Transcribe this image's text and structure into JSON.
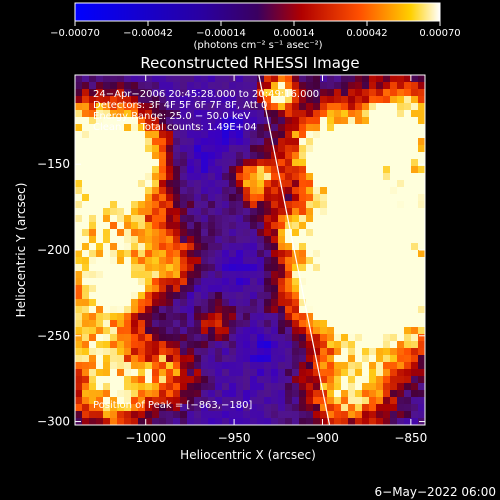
{
  "chart_data": {
    "type": "heatmap",
    "title": "Reconstructed RHESSI Image",
    "xlabel": "Heliocentric X (arcsec)",
    "ylabel": "Heliocentric Y (arcsec)",
    "xlim": [
      -1040,
      -842
    ],
    "ylim": [
      -302,
      -98
    ],
    "x_ticks": [
      -1000,
      -950,
      -900,
      -850
    ],
    "y_ticks": [
      -150,
      -200,
      -250,
      -300
    ],
    "x_tick_labels": [
      "−1000",
      "−950",
      "−900",
      "−850"
    ],
    "y_tick_labels": [
      "−150",
      "−200",
      "−250",
      "−300"
    ],
    "colorbar": {
      "range": [
        -0.0007,
        0.0007
      ],
      "ticks": [
        -0.0007,
        -0.00042,
        -0.00014,
        0.00014,
        0.00042,
        0.0007
      ],
      "tick_labels": [
        "−0.00070",
        "−0.00042",
        "−0.00014",
        "0.00014",
        "0.00042",
        "0.00070"
      ],
      "units": "(photons cm⁻² s⁻¹ asec⁻²)"
    },
    "annotations": [
      "24−Apr−2006 20:45:28.000 to 20:49:16.000",
      "Detectors: 3F 4F 5F 6F 7F 8F, Att 0",
      "Energy Range: 25.0 − 50.0 keV",
      "Clean      Total counts: 1.49E+04",
      "Position of Peak = [−863,−180]"
    ],
    "peak_position": [
      -863,
      -180
    ],
    "limb_line": {
      "x": [
        -936,
        -896
      ],
      "y": [
        -98,
        -302
      ]
    },
    "footer": "6−May−2022 06:00",
    "colors": {
      "background": "#000000",
      "line": "#ffffff"
    }
  }
}
